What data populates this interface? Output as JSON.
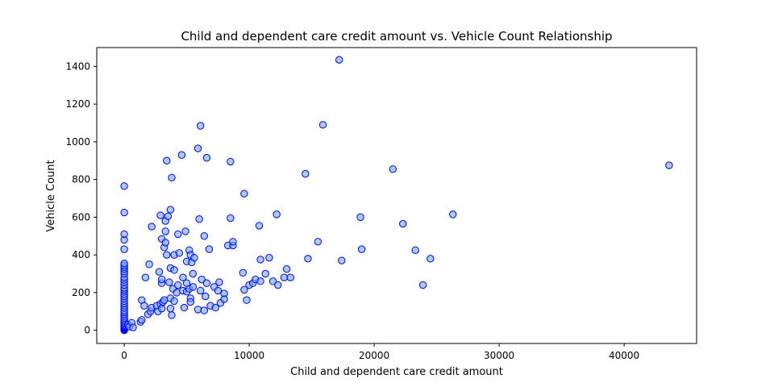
{
  "chart_data": {
    "type": "scatter",
    "title": "Child and dependent care credit amount vs. Vehicle Count Relationship",
    "xlabel": "Child and dependent care credit amount",
    "ylabel": "Vehicle Count",
    "xlim": [
      -2200,
      45800
    ],
    "ylim": [
      -70,
      1500
    ],
    "xticks": [
      0,
      10000,
      20000,
      30000,
      40000
    ],
    "yticks": [
      0,
      200,
      400,
      600,
      800,
      1000,
      1200,
      1400
    ],
    "grid": false,
    "legend": "none",
    "colors": {
      "marker_face": "#6fa8ff",
      "marker_edge": "#0000ff"
    },
    "points": [
      [
        0,
        0
      ],
      [
        0,
        3
      ],
      [
        0,
        6
      ],
      [
        0,
        10
      ],
      [
        0,
        14
      ],
      [
        0,
        18
      ],
      [
        0,
        22
      ],
      [
        0,
        27
      ],
      [
        0,
        33
      ],
      [
        0,
        40
      ],
      [
        0,
        48
      ],
      [
        0,
        56
      ],
      [
        0,
        65
      ],
      [
        0,
        75
      ],
      [
        0,
        85
      ],
      [
        0,
        95
      ],
      [
        0,
        105
      ],
      [
        0,
        118
      ],
      [
        0,
        130
      ],
      [
        0,
        142
      ],
      [
        0,
        155
      ],
      [
        0,
        168
      ],
      [
        0,
        180
      ],
      [
        0,
        192
      ],
      [
        0,
        205
      ],
      [
        0,
        215
      ],
      [
        0,
        225
      ],
      [
        0,
        240
      ],
      [
        0,
        255
      ],
      [
        0,
        268
      ],
      [
        0,
        280
      ],
      [
        0,
        300
      ],
      [
        0,
        312
      ],
      [
        0,
        325
      ],
      [
        0,
        335
      ],
      [
        0,
        345
      ],
      [
        0,
        355
      ],
      [
        0,
        430
      ],
      [
        0,
        480
      ],
      [
        0,
        510
      ],
      [
        0,
        625
      ],
      [
        0,
        765
      ],
      [
        300,
        30
      ],
      [
        400,
        20
      ],
      [
        600,
        40
      ],
      [
        700,
        15
      ],
      [
        1300,
        45
      ],
      [
        1400,
        55
      ],
      [
        1400,
        160
      ],
      [
        1600,
        130
      ],
      [
        1700,
        280
      ],
      [
        1900,
        85
      ],
      [
        2000,
        350
      ],
      [
        2100,
        100
      ],
      [
        2200,
        120
      ],
      [
        2200,
        550
      ],
      [
        2600,
        130
      ],
      [
        2700,
        100
      ],
      [
        2800,
        310
      ],
      [
        2900,
        140
      ],
      [
        2900,
        610
      ],
      [
        3000,
        250
      ],
      [
        3000,
        270
      ],
      [
        3000,
        485
      ],
      [
        3000,
        115
      ],
      [
        3100,
        150
      ],
      [
        3200,
        160
      ],
      [
        3200,
        440
      ],
      [
        3300,
        465
      ],
      [
        3300,
        525
      ],
      [
        3300,
        580
      ],
      [
        3400,
        400
      ],
      [
        3400,
        900
      ],
      [
        3500,
        605
      ],
      [
        3600,
        255
      ],
      [
        3700,
        330
      ],
      [
        3700,
        115
      ],
      [
        3700,
        170
      ],
      [
        3700,
        640
      ],
      [
        3800,
        810
      ],
      [
        3800,
        80
      ],
      [
        3900,
        220
      ],
      [
        4000,
        155
      ],
      [
        4000,
        400
      ],
      [
        4000,
        320
      ],
      [
        4200,
        200
      ],
      [
        4300,
        510
      ],
      [
        4300,
        240
      ],
      [
        4400,
        410
      ],
      [
        4600,
        930
      ],
      [
        4700,
        210
      ],
      [
        4700,
        280
      ],
      [
        4800,
        120
      ],
      [
        4900,
        525
      ],
      [
        5000,
        250
      ],
      [
        5000,
        205
      ],
      [
        5000,
        365
      ],
      [
        5200,
        220
      ],
      [
        5200,
        425
      ],
      [
        5300,
        170
      ],
      [
        5300,
        150
      ],
      [
        5300,
        400
      ],
      [
        5400,
        360
      ],
      [
        5500,
        300
      ],
      [
        5500,
        230
      ],
      [
        5600,
        385
      ],
      [
        5900,
        965
      ],
      [
        5900,
        110
      ],
      [
        6000,
        590
      ],
      [
        6100,
        210
      ],
      [
        6100,
        1085
      ],
      [
        6200,
        270
      ],
      [
        6400,
        105
      ],
      [
        6400,
        500
      ],
      [
        6500,
        180
      ],
      [
        6600,
        915
      ],
      [
        6600,
        250
      ],
      [
        6800,
        430
      ],
      [
        6900,
        130
      ],
      [
        7200,
        230
      ],
      [
        7300,
        120
      ],
      [
        7500,
        210
      ],
      [
        7600,
        255
      ],
      [
        7700,
        145
      ],
      [
        8000,
        195
      ],
      [
        8000,
        165
      ],
      [
        8300,
        450
      ],
      [
        8500,
        895
      ],
      [
        8500,
        595
      ],
      [
        8700,
        450
      ],
      [
        8700,
        470
      ],
      [
        9500,
        305
      ],
      [
        9600,
        725
      ],
      [
        9600,
        215
      ],
      [
        9800,
        160
      ],
      [
        10000,
        240
      ],
      [
        10300,
        250
      ],
      [
        10500,
        270
      ],
      [
        10800,
        555
      ],
      [
        10900,
        260
      ],
      [
        10900,
        375
      ],
      [
        11300,
        300
      ],
      [
        11600,
        385
      ],
      [
        11900,
        260
      ],
      [
        12200,
        615
      ],
      [
        12300,
        240
      ],
      [
        12800,
        280
      ],
      [
        13000,
        325
      ],
      [
        13300,
        280
      ],
      [
        14500,
        830
      ],
      [
        14700,
        380
      ],
      [
        15500,
        470
      ],
      [
        15900,
        1090
      ],
      [
        17200,
        1435
      ],
      [
        17400,
        370
      ],
      [
        18900,
        600
      ],
      [
        19000,
        430
      ],
      [
        21500,
        855
      ],
      [
        22300,
        565
      ],
      [
        23300,
        425
      ],
      [
        23900,
        240
      ],
      [
        24500,
        380
      ],
      [
        26300,
        615
      ],
      [
        43600,
        875
      ]
    ]
  }
}
